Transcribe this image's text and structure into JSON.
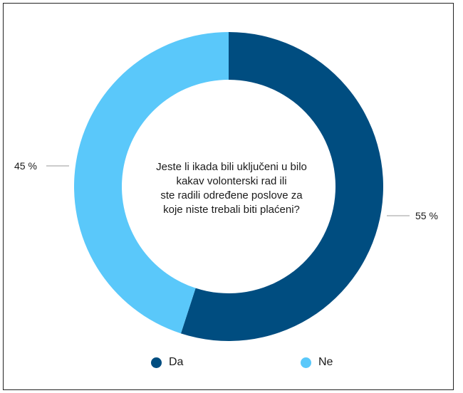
{
  "chart_data": {
    "type": "pie",
    "title": "Jeste li ikada bili uključeni u bilo kakav volonterski rad ili ste radili određene poslove za koje niste trebali biti plaćeni?",
    "title_lines": [
      "Jeste li ikada bili uključeni u bilo",
      "kakav volonterski rad ili",
      "ste radili određene poslove za",
      "koje niste trebali biti plaćeni?"
    ],
    "donut": true,
    "categories": [
      "Da",
      "Ne"
    ],
    "values": [
      55,
      45
    ],
    "data_labels": [
      "55 %",
      "45 %"
    ],
    "colors": [
      "#004d80",
      "#5ac8fa"
    ],
    "legend_position": "bottom"
  }
}
